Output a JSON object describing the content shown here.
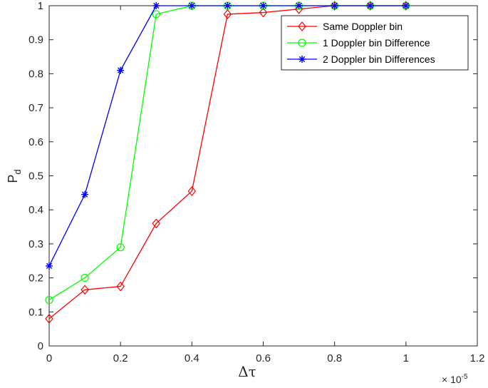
{
  "chart_data": {
    "type": "line",
    "xlabel": "Δτ",
    "ylabel_main": "P",
    "ylabel_sub": "d",
    "x_multiplier_base": "× 10",
    "x_multiplier_exp": "-5",
    "xlim": [
      0,
      1.2
    ],
    "ylim": [
      0,
      1
    ],
    "xticks": [
      0,
      0.2,
      0.4,
      0.6,
      0.8,
      1,
      1.2
    ],
    "xtick_labels": [
      "0",
      "0.2",
      "0.4",
      "0.6",
      "0.8",
      "1",
      "1.2"
    ],
    "yticks": [
      0,
      0.1,
      0.2,
      0.3,
      0.4,
      0.5,
      0.6,
      0.7,
      0.8,
      0.9,
      1
    ],
    "ytick_labels": [
      "0",
      "0.1",
      "0.2",
      "0.3",
      "0.4",
      "0.5",
      "0.6",
      "0.7",
      "0.8",
      "0.9",
      "1"
    ],
    "grid": false,
    "legend_position": "top-right",
    "x": [
      0,
      0.1,
      0.2,
      0.3,
      0.4,
      0.5,
      0.6,
      0.7,
      0.8,
      0.9,
      1.0
    ],
    "series": [
      {
        "name": "Same Doppler bin",
        "color": "#ff0000",
        "marker": "diamond",
        "values": [
          0.08,
          0.165,
          0.175,
          0.36,
          0.455,
          0.975,
          0.98,
          0.99,
          1.0,
          1.0,
          1.0
        ]
      },
      {
        "name": "1 Doppler bin Difference",
        "color": "#00ff00",
        "marker": "circle",
        "values": [
          0.135,
          0.2,
          0.29,
          0.975,
          1.0,
          1.0,
          1.0,
          1.0,
          1.0,
          1.0,
          1.0
        ]
      },
      {
        "name": "2 Doppler bin Differences",
        "color": "#0000ff",
        "marker": "asterisk",
        "values": [
          0.235,
          0.445,
          0.81,
          1.0,
          1.0,
          1.0,
          1.0,
          1.0,
          1.0,
          1.0,
          1.0
        ]
      }
    ]
  }
}
